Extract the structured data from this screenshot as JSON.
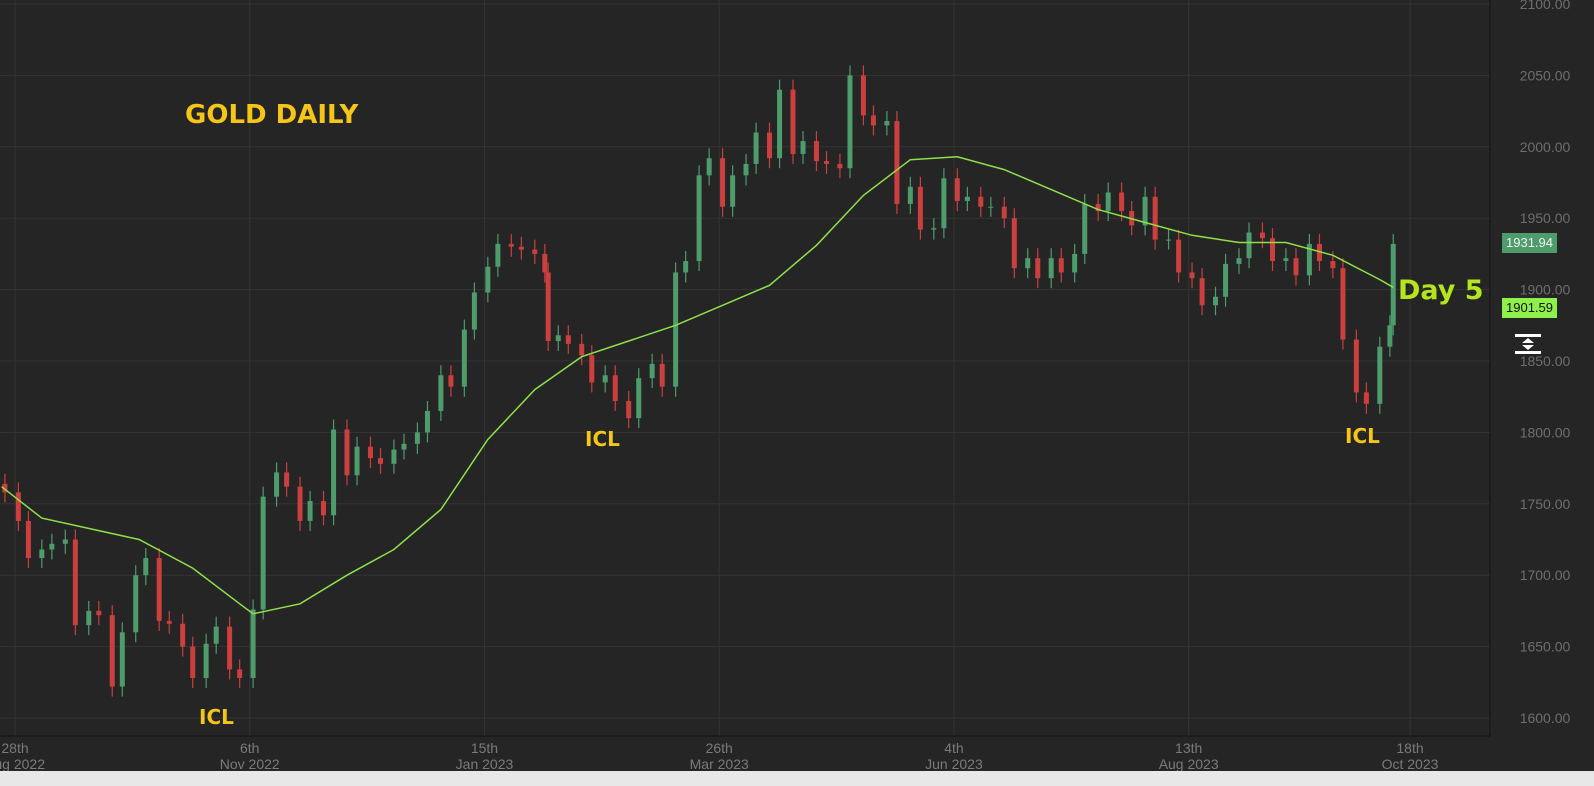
{
  "chart_data": {
    "type": "candlestick",
    "title": "GOLD DAILY",
    "colors": {
      "background": "#252525",
      "grid": "#343434",
      "up": "#4e9b6c",
      "down": "#cc3f3f",
      "ma": "#8ee04a",
      "annotation": "#f5c518",
      "day_label": "#b5e61d"
    },
    "ylim": [
      1600,
      2100
    ],
    "y_ticks": [
      "1600.00",
      "1650.00",
      "1700.00",
      "1750.00",
      "1800.00",
      "1850.00",
      "1900.00",
      "1950.00",
      "2000.00",
      "2050.00",
      "2100.00"
    ],
    "x_ticks": [
      {
        "day": "28th",
        "month": "Aug 2022",
        "date": "2022-08-28"
      },
      {
        "day": "6th",
        "month": "Nov 2022",
        "date": "2022-11-06"
      },
      {
        "day": "15th",
        "month": "Jan 2023",
        "date": "2023-01-15"
      },
      {
        "day": "26th",
        "month": "Mar 2023",
        "date": "2023-03-26"
      },
      {
        "day": "4th",
        "month": "Jun 2023",
        "date": "2023-06-04"
      },
      {
        "day": "13th",
        "month": "Aug 2023",
        "date": "2023-08-13"
      },
      {
        "day": "18th",
        "month": "Oct 2023",
        "date": "2023-10-18"
      }
    ],
    "grid": true,
    "closes": [
      [
        "2022-08-25",
        1758
      ],
      [
        "2022-08-29",
        1738
      ],
      [
        "2022-09-01",
        1712
      ],
      [
        "2022-09-05",
        1718
      ],
      [
        "2022-09-08",
        1722
      ],
      [
        "2022-09-12",
        1725
      ],
      [
        "2022-09-15",
        1665
      ],
      [
        "2022-09-19",
        1675
      ],
      [
        "2022-09-22",
        1672
      ],
      [
        "2022-09-26",
        1622
      ],
      [
        "2022-09-29",
        1660
      ],
      [
        "2022-10-03",
        1700
      ],
      [
        "2022-10-06",
        1712
      ],
      [
        "2022-10-10",
        1668
      ],
      [
        "2022-10-13",
        1666
      ],
      [
        "2022-10-17",
        1650
      ],
      [
        "2022-10-20",
        1628
      ],
      [
        "2022-10-24",
        1652
      ],
      [
        "2022-10-27",
        1664
      ],
      [
        "2022-10-31",
        1634
      ],
      [
        "2022-11-03",
        1628
      ],
      [
        "2022-11-07",
        1676
      ],
      [
        "2022-11-10",
        1755
      ],
      [
        "2022-11-14",
        1772
      ],
      [
        "2022-11-17",
        1762
      ],
      [
        "2022-11-21",
        1738
      ],
      [
        "2022-11-24",
        1752
      ],
      [
        "2022-11-28",
        1742
      ],
      [
        "2022-12-01",
        1802
      ],
      [
        "2022-12-05",
        1770
      ],
      [
        "2022-12-08",
        1790
      ],
      [
        "2022-12-12",
        1782
      ],
      [
        "2022-12-15",
        1778
      ],
      [
        "2022-12-19",
        1788
      ],
      [
        "2022-12-22",
        1792
      ],
      [
        "2022-12-26",
        1800
      ],
      [
        "2022-12-29",
        1815
      ],
      [
        "2023-01-02",
        1840
      ],
      [
        "2023-01-05",
        1832
      ],
      [
        "2023-01-09",
        1872
      ],
      [
        "2023-01-12",
        1898
      ],
      [
        "2023-01-16",
        1916
      ],
      [
        "2023-01-19",
        1932
      ],
      [
        "2023-01-23",
        1930
      ],
      [
        "2023-01-26",
        1928
      ],
      [
        "2023-01-30",
        1925
      ],
      [
        "2023-02-02",
        1912
      ],
      [
        "2023-02-03",
        1864
      ],
      [
        "2023-02-06",
        1868
      ],
      [
        "2023-02-09",
        1862
      ],
      [
        "2023-02-13",
        1854
      ],
      [
        "2023-02-16",
        1835
      ],
      [
        "2023-02-20",
        1840
      ],
      [
        "2023-02-23",
        1822
      ],
      [
        "2023-02-27",
        1810
      ],
      [
        "2023-03-02",
        1838
      ],
      [
        "2023-03-06",
        1848
      ],
      [
        "2023-03-09",
        1832
      ],
      [
        "2023-03-13",
        1912
      ],
      [
        "2023-03-16",
        1920
      ],
      [
        "2023-03-20",
        1980
      ],
      [
        "2023-03-23",
        1992
      ],
      [
        "2023-03-27",
        1958
      ],
      [
        "2023-03-30",
        1980
      ],
      [
        "2023-04-03",
        1988
      ],
      [
        "2023-04-06",
        2010
      ],
      [
        "2023-04-10",
        1992
      ],
      [
        "2023-04-13",
        2040
      ],
      [
        "2023-04-17",
        1995
      ],
      [
        "2023-04-20",
        2004
      ],
      [
        "2023-04-24",
        1990
      ],
      [
        "2023-04-27",
        1988
      ],
      [
        "2023-05-01",
        1985
      ],
      [
        "2023-05-04",
        2050
      ],
      [
        "2023-05-08",
        2022
      ],
      [
        "2023-05-11",
        2015
      ],
      [
        "2023-05-15",
        2018
      ],
      [
        "2023-05-18",
        1960
      ],
      [
        "2023-05-22",
        1972
      ],
      [
        "2023-05-25",
        1942
      ],
      [
        "2023-05-29",
        1943
      ],
      [
        "2023-06-01",
        1978
      ],
      [
        "2023-06-05",
        1962
      ],
      [
        "2023-06-08",
        1965
      ],
      [
        "2023-06-12",
        1958
      ],
      [
        "2023-06-15",
        1958
      ],
      [
        "2023-06-19",
        1950
      ],
      [
        "2023-06-22",
        1915
      ],
      [
        "2023-06-26",
        1922
      ],
      [
        "2023-06-29",
        1908
      ],
      [
        "2023-07-03",
        1922
      ],
      [
        "2023-07-06",
        1912
      ],
      [
        "2023-07-10",
        1925
      ],
      [
        "2023-07-13",
        1960
      ],
      [
        "2023-07-17",
        1955
      ],
      [
        "2023-07-20",
        1968
      ],
      [
        "2023-07-24",
        1955
      ],
      [
        "2023-07-27",
        1945
      ],
      [
        "2023-07-31",
        1965
      ],
      [
        "2023-08-03",
        1935
      ],
      [
        "2023-08-07",
        1935
      ],
      [
        "2023-08-10",
        1912
      ],
      [
        "2023-08-14",
        1908
      ],
      [
        "2023-08-17",
        1889
      ],
      [
        "2023-08-21",
        1895
      ],
      [
        "2023-08-24",
        1918
      ],
      [
        "2023-08-28",
        1922
      ],
      [
        "2023-08-31",
        1940
      ],
      [
        "2023-09-04",
        1936
      ],
      [
        "2023-09-07",
        1920
      ],
      [
        "2023-09-11",
        1922
      ],
      [
        "2023-09-14",
        1910
      ],
      [
        "2023-09-18",
        1932
      ],
      [
        "2023-09-21",
        1920
      ],
      [
        "2023-09-25",
        1915
      ],
      [
        "2023-09-28",
        1865
      ],
      [
        "2023-10-02",
        1828
      ],
      [
        "2023-10-05",
        1820
      ],
      [
        "2023-10-09",
        1860
      ],
      [
        "2023-10-12",
        1875
      ],
      [
        "2023-10-13",
        1932
      ]
    ],
    "moving_average": [
      [
        "2022-08-24",
        1762
      ],
      [
        "2022-09-05",
        1740
      ],
      [
        "2022-10-04",
        1725
      ],
      [
        "2022-10-20",
        1705
      ],
      [
        "2022-11-03",
        1680
      ],
      [
        "2022-11-07",
        1673
      ],
      [
        "2022-11-21",
        1680
      ],
      [
        "2022-12-05",
        1700
      ],
      [
        "2022-12-19",
        1718
      ],
      [
        "2023-01-02",
        1746
      ],
      [
        "2023-01-16",
        1795
      ],
      [
        "2023-01-30",
        1830
      ],
      [
        "2023-02-13",
        1853
      ],
      [
        "2023-02-27",
        1864
      ],
      [
        "2023-03-13",
        1875
      ],
      [
        "2023-03-27",
        1889
      ],
      [
        "2023-04-10",
        1903
      ],
      [
        "2023-04-24",
        1931
      ],
      [
        "2023-05-08",
        1966
      ],
      [
        "2023-05-22",
        1991
      ],
      [
        "2023-06-05",
        1993
      ],
      [
        "2023-06-19",
        1984
      ],
      [
        "2023-07-03",
        1970
      ],
      [
        "2023-07-17",
        1956
      ],
      [
        "2023-07-31",
        1947
      ],
      [
        "2023-08-14",
        1938
      ],
      [
        "2023-08-28",
        1933
      ],
      [
        "2023-09-11",
        1933
      ],
      [
        "2023-09-25",
        1924
      ],
      [
        "2023-10-09",
        1907
      ],
      [
        "2023-10-13",
        1901.59
      ]
    ],
    "price_labels": {
      "last": "1931.94",
      "ma": "1901.59"
    },
    "annotations": {
      "title": "GOLD DAILY",
      "icl_1": "ICL",
      "icl_2": "ICL",
      "icl_3": "ICL",
      "day": "Day 5"
    }
  },
  "icons": {
    "axis_scale": "scale-arrows-icon"
  }
}
